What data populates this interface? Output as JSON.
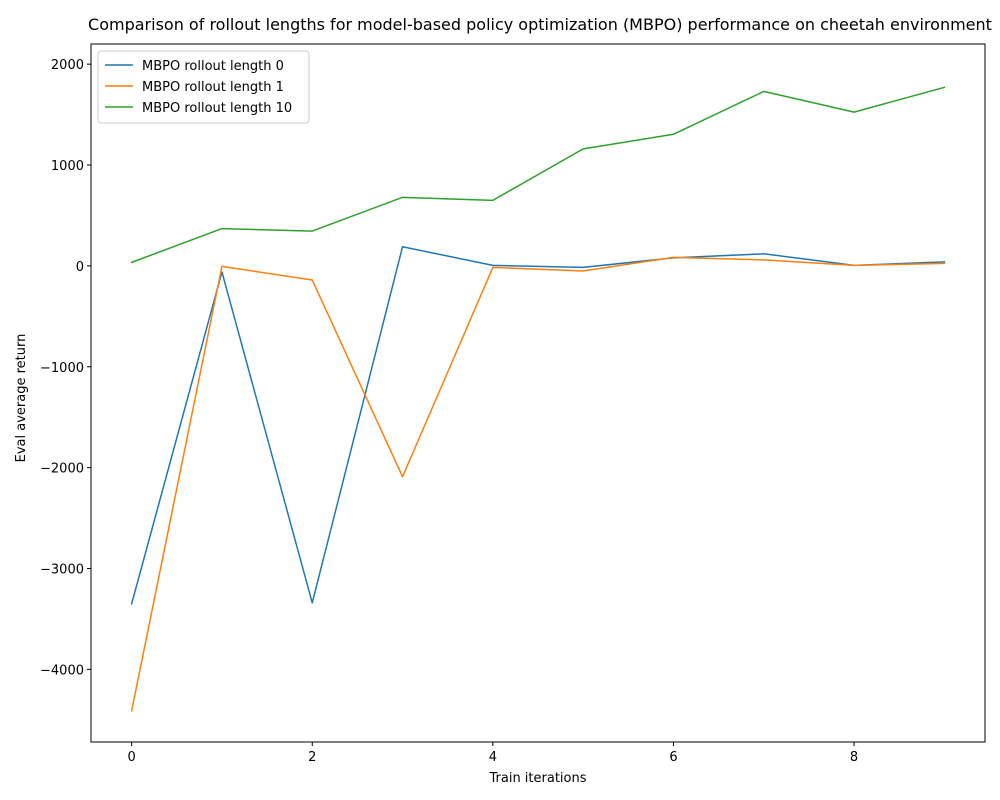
{
  "chart_data": {
    "type": "line",
    "title": "Comparison of rollout lengths for model-based policy optimization (MBPO) performance on cheetah environment",
    "xlabel": "Train iterations",
    "ylabel": "Eval average return",
    "x": [
      0,
      1,
      2,
      3,
      4,
      5,
      6,
      7,
      8,
      9
    ],
    "xticks": [
      "0",
      "2",
      "4",
      "6",
      "8"
    ],
    "yticks": [
      "−4000",
      "−3000",
      "−2000",
      "−1000",
      "0",
      "1000",
      "2000"
    ],
    "xlim": [
      -0.45,
      9.45
    ],
    "ylim": [
      -4720,
      2200
    ],
    "grid": false,
    "legend_position": "top-left",
    "series": [
      {
        "name": "MBPO rollout length 0",
        "color": "#1f77b4",
        "values": [
          -3350,
          -60,
          -3340,
          190,
          5,
          -15,
          80,
          120,
          5,
          40
        ]
      },
      {
        "name": "MBPO rollout length 1",
        "color": "#ff7f0e",
        "values": [
          -4410,
          -5,
          -140,
          -2090,
          -15,
          -50,
          85,
          60,
          5,
          25
        ]
      },
      {
        "name": "MBPO rollout length 10",
        "color": "#2ca02c",
        "values": [
          35,
          370,
          345,
          680,
          650,
          1160,
          1305,
          1730,
          1525,
          1770
        ]
      }
    ]
  }
}
